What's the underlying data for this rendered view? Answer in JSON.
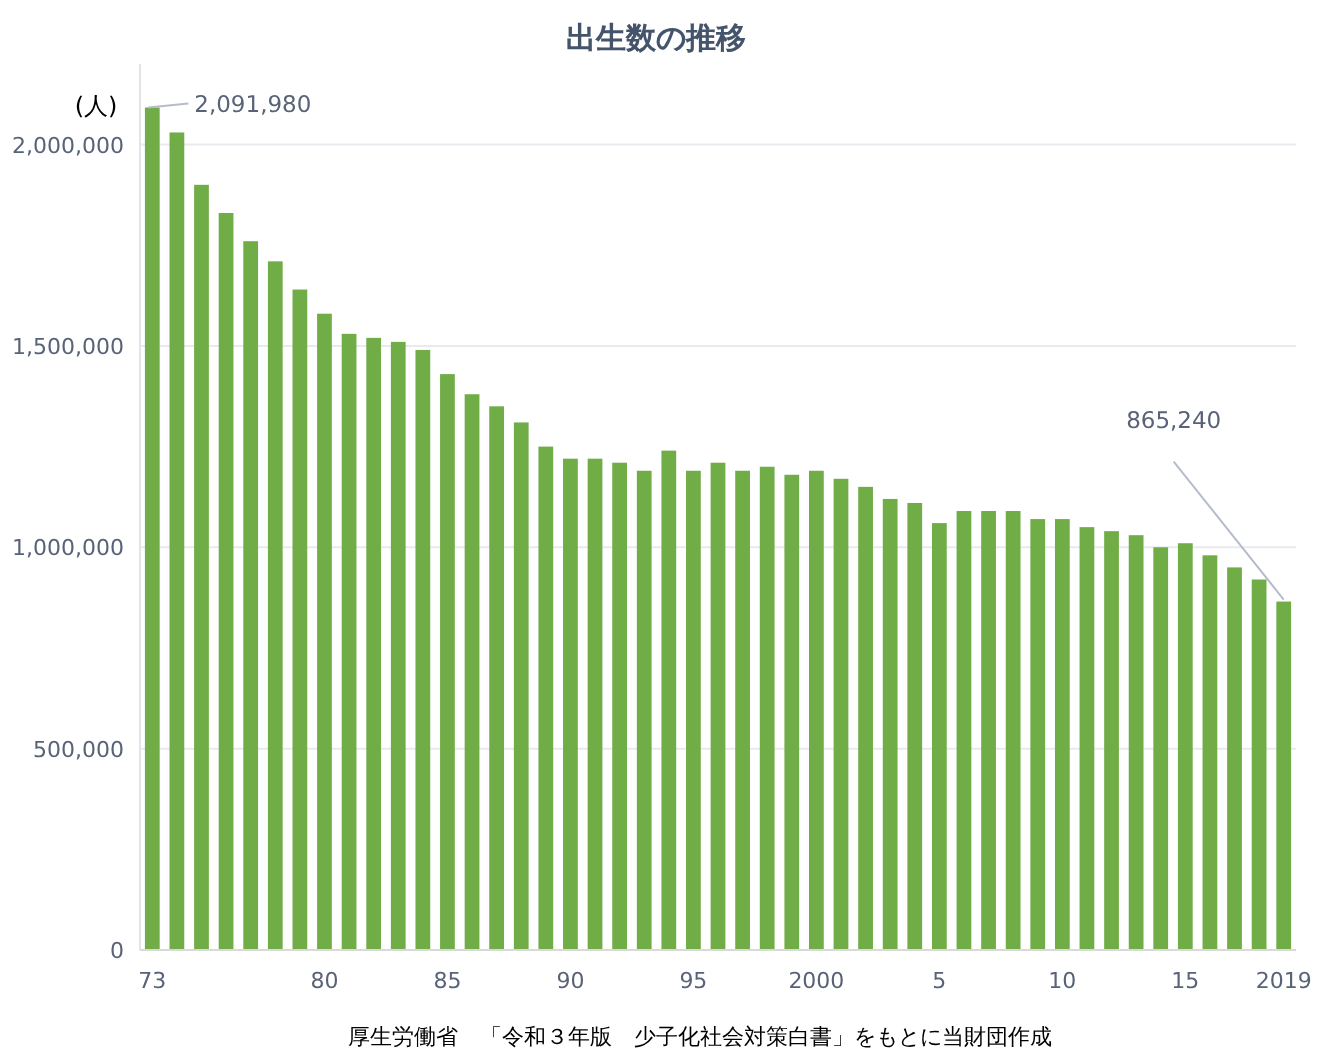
{
  "chart_data": {
    "type": "bar",
    "title": "出生数の推移",
    "ylabel": "(人)",
    "categories": [
      "73",
      null,
      null,
      null,
      null,
      null,
      null,
      "80",
      null,
      null,
      null,
      null,
      "85",
      null,
      null,
      null,
      null,
      "90",
      null,
      null,
      null,
      null,
      "95",
      null,
      null,
      null,
      null,
      "2000",
      null,
      null,
      null,
      null,
      "5",
      null,
      null,
      null,
      null,
      "10",
      null,
      null,
      null,
      null,
      "15",
      null,
      null,
      null,
      "2019"
    ],
    "values": [
      2091980,
      2030000,
      1900000,
      1830000,
      1760000,
      1710000,
      1640000,
      1580000,
      1530000,
      1520000,
      1510000,
      1490000,
      1430000,
      1380000,
      1350000,
      1310000,
      1250000,
      1220000,
      1220000,
      1210000,
      1190000,
      1240000,
      1190000,
      1210000,
      1190000,
      1200000,
      1180000,
      1190000,
      1170000,
      1150000,
      1120000,
      1110000,
      1060000,
      1090000,
      1090000,
      1090000,
      1070000,
      1070000,
      1050000,
      1040000,
      1030000,
      1000000,
      1010000,
      980000,
      950000,
      920000,
      865240
    ],
    "value_labels": [
      "2,091,980",
      null,
      null,
      null,
      null,
      null,
      null,
      null,
      null,
      null,
      null,
      null,
      null,
      null,
      null,
      null,
      null,
      null,
      null,
      null,
      null,
      null,
      null,
      null,
      null,
      null,
      null,
      null,
      null,
      null,
      null,
      null,
      null,
      null,
      null,
      null,
      null,
      null,
      null,
      null,
      null,
      null,
      null,
      null,
      null,
      null,
      "865,240"
    ],
    "color": "#70ad47",
    "ylim": [
      0,
      2200000
    ],
    "yticks": [
      0,
      {
        "value": 500000,
        "label": "500,000"
      },
      {
        "value": 1000000,
        "label": "1,000,000"
      },
      {
        "value": 1500000,
        "label": "1,500,000"
      },
      {
        "value": 2000000,
        "label": "2,000,000"
      }
    ],
    "grid": "y",
    "annotations": [
      "厚生労働省　「令和３年版　少子化社会対策白書」をもとに当財団作成"
    ]
  }
}
